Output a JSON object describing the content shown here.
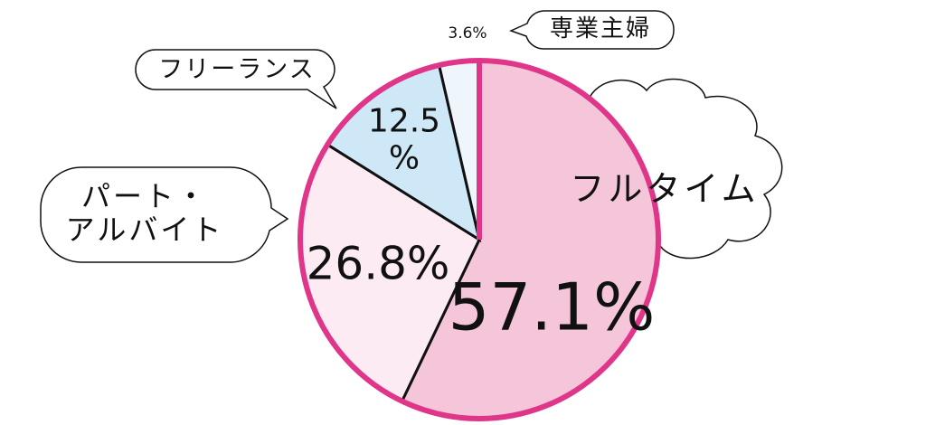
{
  "chart_data": {
    "type": "pie",
    "categories": [
      "フルタイム",
      "パート・\nアルバイト",
      "フリーランス",
      "専業主婦"
    ],
    "values": [
      57.1,
      26.8,
      12.5,
      3.6
    ],
    "value_labels": [
      "57.1%",
      "26.8%",
      "12.5\n%",
      "3.6%"
    ],
    "colors": [
      "#f5c6da",
      "#fdebf3",
      "#cfe8f7",
      "#eef6fc"
    ],
    "edge_color": "#e0368a"
  }
}
